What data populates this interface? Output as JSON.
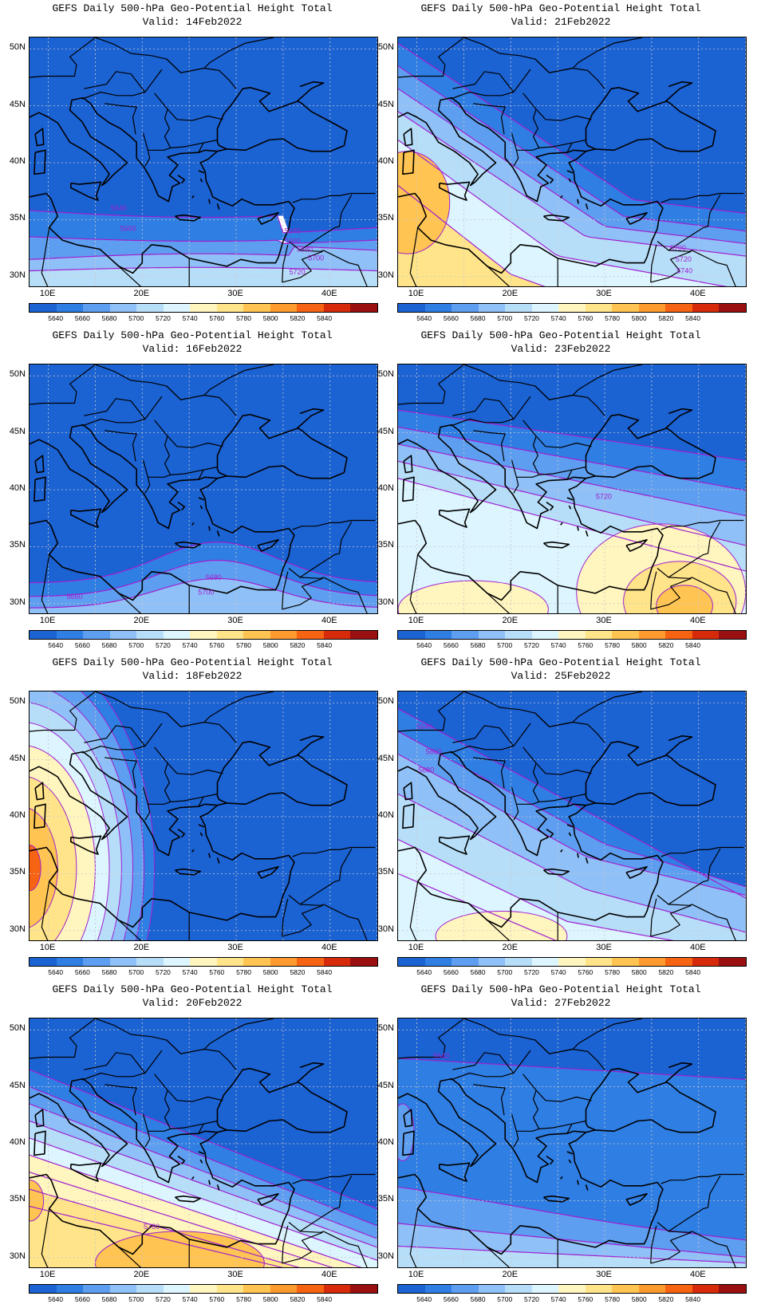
{
  "title": "GEFS Daily 500-hPa Geo-Potential Height Total",
  "valid_prefix": "Valid: ",
  "lat_labels": [
    "50N",
    "45N",
    "40N",
    "35N",
    "30N"
  ],
  "lon_labels": [
    "10E",
    "20E",
    "30E",
    "40E"
  ],
  "levels": [
    "5640",
    "5660",
    "5680",
    "5700",
    "5720",
    "5740",
    "5760",
    "5780",
    "5800",
    "5820",
    "5840"
  ],
  "colors": {
    "c0": "#1b62d3",
    "c1": "#2f7ee3",
    "c2": "#5e9ef0",
    "c3": "#8fc0f7",
    "c4": "#b7def9",
    "c5": "#dcf5ff",
    "c6": "#fff5bf",
    "c7": "#ffe48a",
    "c8": "#ffc451",
    "c9": "#ff9b2e",
    "c10": "#f66313",
    "c11": "#d62a0a",
    "c12": "#9a0f0f",
    "contour": "#a020d0",
    "coast": "#000000",
    "grid": "#c8c8c8"
  },
  "panels": [
    {
      "id": "p14",
      "valid": "14Feb2022",
      "labels": [
        {
          "t": "5640",
          "lon": 17.5,
          "lat": 35.8
        },
        {
          "t": "5660",
          "lon": 18.5,
          "lat": 34.0
        },
        {
          "t": "5640",
          "lon": 36,
          "lat": 33.8
        },
        {
          "t": "5660",
          "lon": 36,
          "lat": 32.9
        },
        {
          "t": "5680",
          "lon": 37.3,
          "lat": 32.2
        },
        {
          "t": "5700",
          "lon": 38.5,
          "lat": 31.4
        },
        {
          "t": "5720",
          "lon": 36.5,
          "lat": 30.2
        }
      ]
    },
    {
      "id": "p21",
      "valid": "21Feb2022",
      "labels": [
        {
          "t": "5700",
          "lon": 37.8,
          "lat": 32.3
        },
        {
          "t": "5720",
          "lon": 38.4,
          "lat": 31.3
        },
        {
          "t": "5740",
          "lon": 38.5,
          "lat": 30.3
        }
      ]
    },
    {
      "id": "p16",
      "valid": "16Feb2022",
      "labels": [
        {
          "t": "5680",
          "lon": 27.6,
          "lat": 32.1
        },
        {
          "t": "5700",
          "lon": 26.8,
          "lat": 30.8
        },
        {
          "t": "5660",
          "lon": 12.8,
          "lat": 30.4
        }
      ]
    },
    {
      "id": "p23",
      "valid": "23Feb2022",
      "labels": [
        {
          "t": "5720",
          "lon": 29.9,
          "lat": 39.2
        }
      ]
    },
    {
      "id": "p18",
      "valid": "18Feb2022",
      "labels": []
    },
    {
      "id": "p25",
      "valid": "25Feb2022",
      "labels": [
        {
          "t": "5640",
          "lon": 10.8,
          "lat": 47.7
        },
        {
          "t": "5660",
          "lon": 11.8,
          "lat": 45.5
        },
        {
          "t": "5680",
          "lon": 11.0,
          "lat": 43.9
        }
      ]
    },
    {
      "id": "p20",
      "valid": "20Feb2022",
      "labels": [
        {
          "t": "5780",
          "lon": 21.0,
          "lat": 32.5
        }
      ]
    },
    {
      "id": "p27",
      "valid": "27Feb2022",
      "labels": [
        {
          "t": "5640",
          "lon": 12.6,
          "lat": 47.5
        }
      ]
    }
  ]
}
